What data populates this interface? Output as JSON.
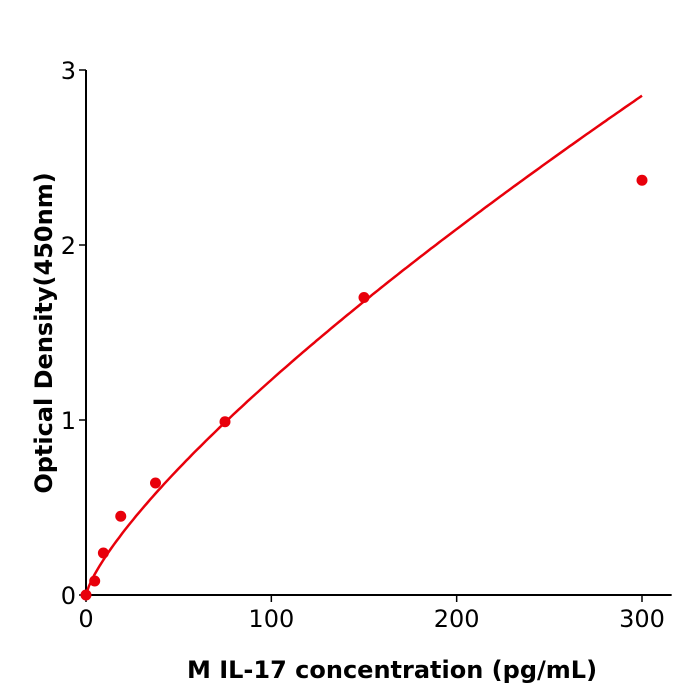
{
  "chart_data": {
    "type": "scatter",
    "title": "",
    "xlabel": "M  IL-17 concentration (pg/mL)",
    "ylabel": "Optical Density(450nm)",
    "xlim": [
      0,
      316
    ],
    "ylim": [
      0,
      3
    ],
    "xticks": [
      0,
      100,
      200,
      300
    ],
    "yticks": [
      0,
      1,
      2,
      3
    ],
    "grid": false,
    "color": "#e8000b",
    "series": [
      {
        "x": [
          0,
          4.69,
          9.38,
          18.75,
          37.5,
          75,
          150,
          300
        ],
        "y": [
          0.0,
          0.08,
          0.24,
          0.45,
          0.64,
          0.99,
          1.7,
          2.37
        ],
        "fit_line": true
      }
    ]
  }
}
